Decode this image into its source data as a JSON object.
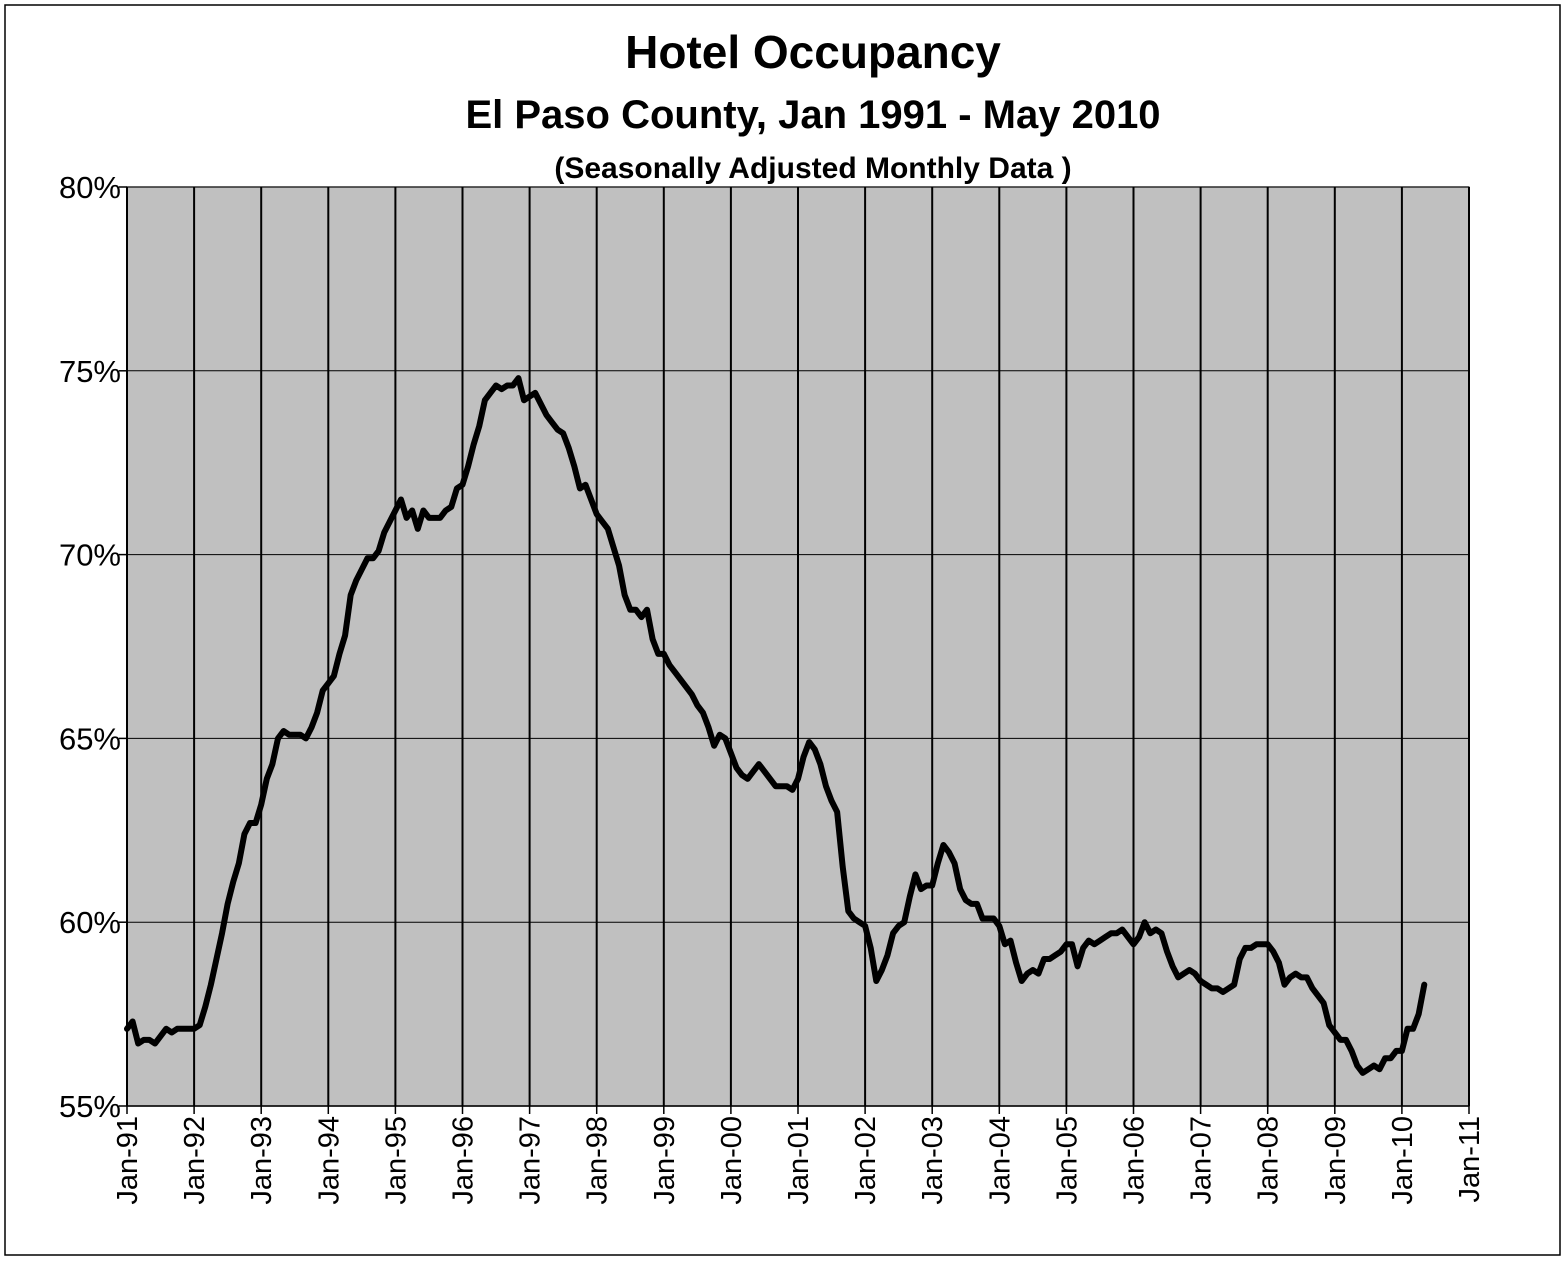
{
  "chart_data": {
    "type": "line",
    "title": "Hotel Occupancy",
    "subtitle": "El Paso County, Jan 1991 - May 2010",
    "note": "(Seasonally Adjusted Monthly Data )",
    "color": "#000000",
    "background": "#c0c0c0",
    "grid": true,
    "ylim": [
      55,
      80
    ],
    "yticks": [
      {
        "value": 55,
        "label": "55%"
      },
      {
        "value": 60,
        "label": "60%"
      },
      {
        "value": 65,
        "label": "65%"
      },
      {
        "value": 70,
        "label": "70%"
      },
      {
        "value": 75,
        "label": "75%"
      },
      {
        "value": 80,
        "label": "80%"
      }
    ],
    "xlim": [
      "Jan-91",
      "Jan-11"
    ],
    "xticks": [
      "Jan-91",
      "Jan-92",
      "Jan-93",
      "Jan-94",
      "Jan-95",
      "Jan-96",
      "Jan-97",
      "Jan-98",
      "Jan-99",
      "Jan-00",
      "Jan-01",
      "Jan-02",
      "Jan-03",
      "Jan-04",
      "Jan-05",
      "Jan-06",
      "Jan-07",
      "Jan-08",
      "Jan-09",
      "Jan-10",
      "Jan-11"
    ],
    "x": [
      "Jan-91",
      "Feb-91",
      "Mar-91",
      "Apr-91",
      "May-91",
      "Jun-91",
      "Jul-91",
      "Aug-91",
      "Sep-91",
      "Oct-91",
      "Nov-91",
      "Dec-91",
      "Jan-92",
      "Feb-92",
      "Mar-92",
      "Apr-92",
      "May-92",
      "Jun-92",
      "Jul-92",
      "Aug-92",
      "Sep-92",
      "Oct-92",
      "Nov-92",
      "Dec-92",
      "Jan-93",
      "Feb-93",
      "Mar-93",
      "Apr-93",
      "May-93",
      "Jun-93",
      "Jul-93",
      "Aug-93",
      "Sep-93",
      "Oct-93",
      "Nov-93",
      "Dec-93",
      "Jan-94",
      "Feb-94",
      "Mar-94",
      "Apr-94",
      "May-94",
      "Jun-94",
      "Jul-94",
      "Aug-94",
      "Sep-94",
      "Oct-94",
      "Nov-94",
      "Dec-94",
      "Jan-95",
      "Feb-95",
      "Mar-95",
      "Apr-95",
      "May-95",
      "Jun-95",
      "Jul-95",
      "Aug-95",
      "Sep-95",
      "Oct-95",
      "Nov-95",
      "Dec-95",
      "Jan-96",
      "Feb-96",
      "Mar-96",
      "Apr-96",
      "May-96",
      "Jun-96",
      "Jul-96",
      "Aug-96",
      "Sep-96",
      "Oct-96",
      "Nov-96",
      "Dec-96",
      "Jan-97",
      "Feb-97",
      "Mar-97",
      "Apr-97",
      "May-97",
      "Jun-97",
      "Jul-97",
      "Aug-97",
      "Sep-97",
      "Oct-97",
      "Nov-97",
      "Dec-97",
      "Jan-98",
      "Feb-98",
      "Mar-98",
      "Apr-98",
      "May-98",
      "Jun-98",
      "Jul-98",
      "Aug-98",
      "Sep-98",
      "Oct-98",
      "Nov-98",
      "Dec-98",
      "Jan-99",
      "Feb-99",
      "Mar-99",
      "Apr-99",
      "May-99",
      "Jun-99",
      "Jul-99",
      "Aug-99",
      "Sep-99",
      "Oct-99",
      "Nov-99",
      "Dec-99",
      "Jan-00",
      "Feb-00",
      "Mar-00",
      "Apr-00",
      "May-00",
      "Jun-00",
      "Jul-00",
      "Aug-00",
      "Sep-00",
      "Oct-00",
      "Nov-00",
      "Dec-00",
      "Jan-01",
      "Feb-01",
      "Mar-01",
      "Apr-01",
      "May-01",
      "Jun-01",
      "Jul-01",
      "Aug-01",
      "Sep-01",
      "Oct-01",
      "Nov-01",
      "Dec-01",
      "Jan-02",
      "Feb-02",
      "Mar-02",
      "Apr-02",
      "May-02",
      "Jun-02",
      "Jul-02",
      "Aug-02",
      "Sep-02",
      "Oct-02",
      "Nov-02",
      "Dec-02",
      "Jan-03",
      "Feb-03",
      "Mar-03",
      "Apr-03",
      "May-03",
      "Jun-03",
      "Jul-03",
      "Aug-03",
      "Sep-03",
      "Oct-03",
      "Nov-03",
      "Dec-03",
      "Jan-04",
      "Feb-04",
      "Mar-04",
      "Apr-04",
      "May-04",
      "Jun-04",
      "Jul-04",
      "Aug-04",
      "Sep-04",
      "Oct-04",
      "Nov-04",
      "Dec-04",
      "Jan-05",
      "Feb-05",
      "Mar-05",
      "Apr-05",
      "May-05",
      "Jun-05",
      "Jul-05",
      "Aug-05",
      "Sep-05",
      "Oct-05",
      "Nov-05",
      "Dec-05",
      "Jan-06",
      "Feb-06",
      "Mar-06",
      "Apr-06",
      "May-06",
      "Jun-06",
      "Jul-06",
      "Aug-06",
      "Sep-06",
      "Oct-06",
      "Nov-06",
      "Dec-06",
      "Jan-07",
      "Feb-07",
      "Mar-07",
      "Apr-07",
      "May-07",
      "Jun-07",
      "Jul-07",
      "Aug-07",
      "Sep-07",
      "Oct-07",
      "Nov-07",
      "Dec-07",
      "Jan-08",
      "Feb-08",
      "Mar-08",
      "Apr-08",
      "May-08",
      "Jun-08",
      "Jul-08",
      "Aug-08",
      "Sep-08",
      "Oct-08",
      "Nov-08",
      "Dec-08",
      "Jan-09",
      "Feb-09",
      "Mar-09",
      "Apr-09",
      "May-09",
      "Jun-09",
      "Jul-09",
      "Aug-09",
      "Sep-09",
      "Oct-09",
      "Nov-09",
      "Dec-09",
      "Jan-10",
      "Feb-10",
      "Mar-10",
      "Apr-10",
      "May-10"
    ],
    "values": [
      57.1,
      57.3,
      56.7,
      56.8,
      56.8,
      56.7,
      56.9,
      57.1,
      57.0,
      57.1,
      57.1,
      57.1,
      57.1,
      57.2,
      57.7,
      58.3,
      59.0,
      59.7,
      60.5,
      61.1,
      61.6,
      62.4,
      62.7,
      62.7,
      63.2,
      63.9,
      64.3,
      65.0,
      65.2,
      65.1,
      65.1,
      65.1,
      65.0,
      65.3,
      65.7,
      66.3,
      66.5,
      66.7,
      67.3,
      67.8,
      68.9,
      69.3,
      69.6,
      69.9,
      69.9,
      70.1,
      70.6,
      70.9,
      71.2,
      71.5,
      71.0,
      71.2,
      70.7,
      71.2,
      71.0,
      71.0,
      71.0,
      71.2,
      71.3,
      71.8,
      71.9,
      72.4,
      73.0,
      73.5,
      74.2,
      74.4,
      74.6,
      74.5,
      74.6,
      74.6,
      74.8,
      74.2,
      74.3,
      74.4,
      74.1,
      73.8,
      73.6,
      73.4,
      73.3,
      72.9,
      72.4,
      71.8,
      71.9,
      71.5,
      71.1,
      70.9,
      70.7,
      70.2,
      69.7,
      68.9,
      68.5,
      68.5,
      68.3,
      68.5,
      67.7,
      67.3,
      67.3,
      67.0,
      66.8,
      66.6,
      66.4,
      66.2,
      65.9,
      65.7,
      65.3,
      64.8,
      65.1,
      65.0,
      64.6,
      64.2,
      64.0,
      63.9,
      64.1,
      64.3,
      64.1,
      63.9,
      63.7,
      63.7,
      63.7,
      63.6,
      63.9,
      64.5,
      64.9,
      64.7,
      64.3,
      63.7,
      63.3,
      63.0,
      61.5,
      60.3,
      60.1,
      60.0,
      59.9,
      59.3,
      58.4,
      58.7,
      59.1,
      59.7,
      59.9,
      60.0,
      60.7,
      61.3,
      60.9,
      61.0,
      61.0,
      61.6,
      62.1,
      61.9,
      61.6,
      60.9,
      60.6,
      60.5,
      60.5,
      60.1,
      60.1,
      60.1,
      59.9,
      59.4,
      59.5,
      58.9,
      58.4,
      58.6,
      58.7,
      58.6,
      59.0,
      59.0,
      59.1,
      59.2,
      59.4,
      59.4,
      58.8,
      59.3,
      59.5,
      59.4,
      59.5,
      59.6,
      59.7,
      59.7,
      59.8,
      59.6,
      59.4,
      59.6,
      60.0,
      59.7,
      59.8,
      59.7,
      59.2,
      58.8,
      58.5,
      58.6,
      58.7,
      58.6,
      58.4,
      58.3,
      58.2,
      58.2,
      58.1,
      58.2,
      58.3,
      59.0,
      59.3,
      59.3,
      59.4,
      59.4,
      59.4,
      59.2,
      58.9,
      58.3,
      58.5,
      58.6,
      58.5,
      58.5,
      58.2,
      58.0,
      57.8,
      57.2,
      57.0,
      56.8,
      56.8,
      56.5,
      56.1,
      55.9,
      56.0,
      56.1,
      56.0,
      56.3,
      56.3,
      56.5,
      56.5,
      57.1,
      57.1,
      57.5,
      58.3
    ]
  }
}
